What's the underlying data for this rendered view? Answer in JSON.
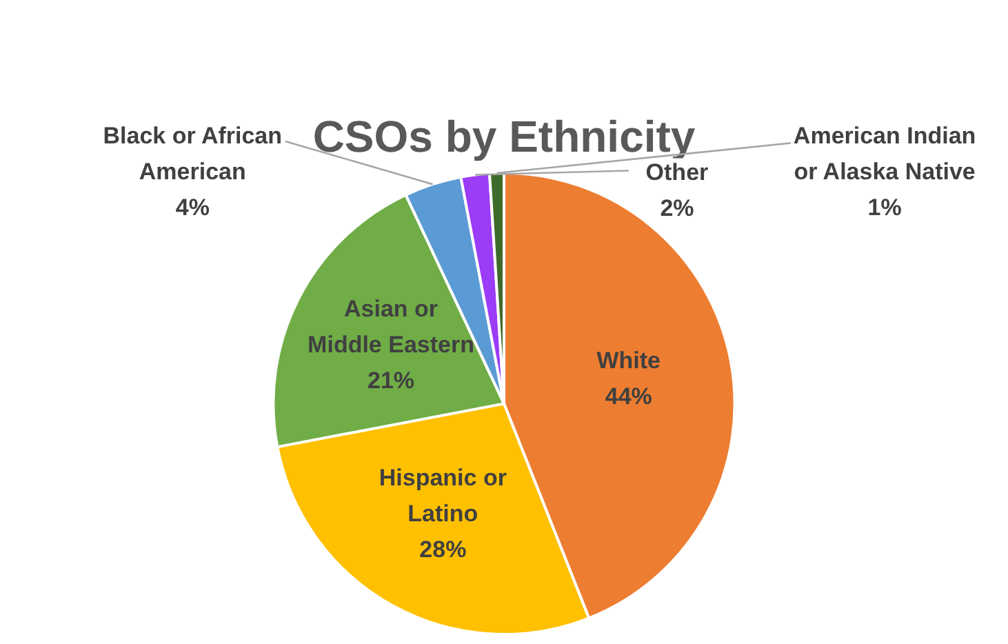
{
  "chart_data": {
    "type": "pie",
    "title": "CSOs by Ethnicity",
    "categories": [
      "White",
      "Hispanic or Latino",
      "Asian or Middle Eastern",
      "Black or African American",
      "Other",
      "American Indian or Alaska Native"
    ],
    "values": [
      44,
      28,
      21,
      4,
      2,
      1
    ],
    "value_labels": [
      "44%",
      "28%",
      "21%",
      "4%",
      "2%",
      "1%"
    ],
    "colors": [
      "#ed7d31",
      "#ffc000",
      "#70ad47",
      "#5b9bd5",
      "#9b3cf7",
      "#3f6b2a"
    ],
    "legend": false
  }
}
